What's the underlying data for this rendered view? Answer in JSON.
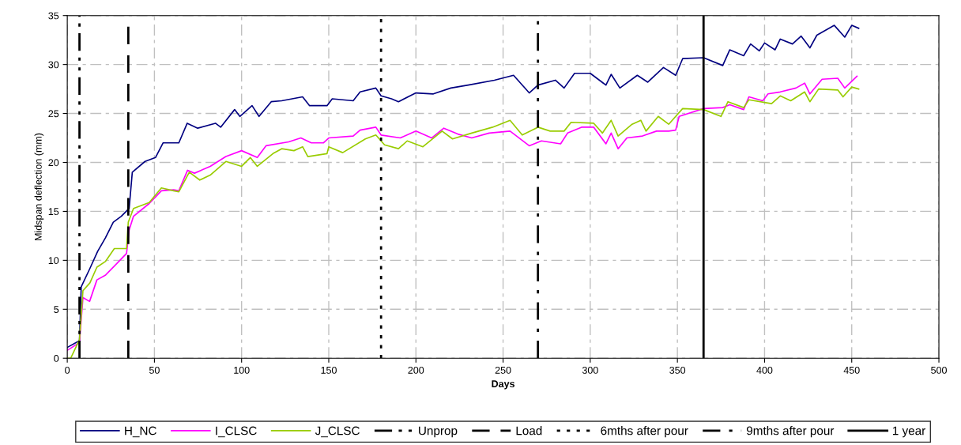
{
  "chart_data": {
    "type": "line",
    "xlabel": "Days",
    "ylabel": "Midspan deflection (mm)",
    "xlim": [
      0,
      500
    ],
    "xticks": [
      0,
      50,
      100,
      150,
      200,
      250,
      300,
      350,
      400,
      450,
      500
    ],
    "ylim": [
      0,
      35
    ],
    "yticks": [
      0,
      5,
      10,
      15,
      20,
      25,
      30,
      35
    ],
    "grid": true,
    "legend": "bottom",
    "line_style": "solid",
    "marker": "none",
    "series": [
      {
        "name": "H_NC",
        "color": "#000080",
        "x": [
          0,
          7,
          8,
          12.8,
          17.4,
          21.9,
          26.4,
          31,
          35.5,
          37.3,
          44.6,
          50.6,
          55,
          64,
          68.8,
          74.8,
          85,
          88,
          96,
          99,
          106,
          110,
          117,
          123,
          135,
          139,
          149,
          152,
          164,
          168,
          177,
          180,
          186,
          190,
          200,
          210,
          220,
          230,
          245,
          256,
          265,
          270,
          280,
          285,
          291,
          300,
          309,
          312,
          317,
          327,
          333,
          342,
          349,
          353,
          365,
          376,
          380,
          388,
          392,
          397,
          400,
          406,
          409,
          416,
          421,
          426,
          430,
          440,
          446,
          450,
          454
        ],
        "values": [
          1.1,
          1.8,
          7.3,
          9.1,
          10.9,
          12.3,
          13.9,
          14.5,
          15.3,
          19.0,
          20.1,
          20.5,
          22.0,
          22.0,
          24.0,
          23.5,
          24.0,
          23.6,
          25.4,
          24.7,
          25.8,
          24.7,
          26.2,
          26.3,
          26.7,
          25.8,
          25.8,
          26.5,
          26.3,
          27.2,
          27.6,
          26.8,
          26.5,
          26.2,
          27.1,
          27.0,
          27.6,
          27.9,
          28.4,
          28.9,
          27.1,
          27.9,
          28.4,
          27.6,
          29.1,
          29.1,
          27.9,
          29.0,
          27.6,
          28.9,
          28.2,
          29.7,
          28.9,
          30.6,
          30.7,
          29.9,
          31.5,
          30.9,
          32.1,
          31.4,
          32.2,
          31.5,
          32.6,
          32.1,
          32.9,
          31.7,
          33.0,
          34.0,
          32.8,
          34.0,
          33.7
        ]
      },
      {
        "name": "I_CLSC",
        "color": "#ff00ff",
        "x": [
          0,
          7,
          9,
          12.8,
          17,
          22,
          28,
          34,
          35.5,
          38,
          47,
          54,
          61,
          64,
          69,
          73,
          82,
          91,
          100,
          109,
          114,
          127,
          134,
          140,
          147,
          150,
          164,
          168,
          177,
          180,
          191,
          200,
          209,
          216,
          224,
          232,
          242,
          254,
          265,
          272,
          283,
          287,
          295,
          302,
          309,
          312,
          316,
          321,
          330,
          338,
          345,
          349,
          351,
          365,
          376,
          380,
          388,
          391,
          399,
          402,
          409,
          418,
          423,
          426,
          433,
          442,
          446,
          453
        ],
        "values": [
          0.8,
          1.6,
          6.2,
          5.8,
          8.0,
          8.5,
          9.6,
          10.7,
          13.1,
          14.5,
          15.8,
          17.1,
          17.2,
          17.1,
          19.2,
          18.9,
          19.6,
          20.6,
          21.2,
          20.5,
          21.7,
          22.1,
          22.5,
          22.0,
          22.0,
          22.5,
          22.7,
          23.3,
          23.6,
          22.8,
          22.5,
          23.2,
          22.5,
          23.5,
          22.9,
          22.5,
          23.0,
          23.2,
          21.7,
          22.2,
          21.9,
          23.0,
          23.6,
          23.6,
          21.9,
          23.0,
          21.4,
          22.5,
          22.7,
          23.2,
          23.2,
          23.3,
          24.7,
          25.5,
          25.6,
          25.9,
          25.4,
          26.7,
          26.3,
          27.0,
          27.2,
          27.6,
          28.1,
          27.0,
          28.5,
          28.6,
          27.6,
          28.8
        ]
      },
      {
        "name": "J_CLSC",
        "color": "#99cc00",
        "x": [
          0,
          2,
          7,
          9,
          13,
          17,
          22,
          27,
          34,
          35,
          38,
          47,
          54,
          61,
          64,
          70,
          76,
          82,
          91,
          100,
          105,
          109,
          118,
          123,
          130,
          135,
          138,
          149,
          150,
          158,
          171,
          177,
          182,
          190,
          195,
          204,
          215,
          221,
          232,
          244,
          254,
          261,
          270,
          277,
          285,
          289,
          302,
          307,
          312,
          316,
          324,
          329,
          332,
          339,
          345,
          353,
          365,
          375,
          379,
          388,
          391,
          404,
          409,
          415,
          423,
          426,
          431,
          442,
          445,
          450,
          454
        ],
        "values": [
          0,
          0,
          1.9,
          6.9,
          7.7,
          9.3,
          9.9,
          11.2,
          11.2,
          13.9,
          15.3,
          15.9,
          17.4,
          17.1,
          17.0,
          19.0,
          18.2,
          18.7,
          20.1,
          19.6,
          20.5,
          19.6,
          20.9,
          21.4,
          21.2,
          21.6,
          20.6,
          20.9,
          21.6,
          21.0,
          22.4,
          22.8,
          21.8,
          21.4,
          22.2,
          21.6,
          23.2,
          22.4,
          23.0,
          23.6,
          24.3,
          22.8,
          23.6,
          23.2,
          23.2,
          24.1,
          24.0,
          23.0,
          24.3,
          22.7,
          23.9,
          24.3,
          23.2,
          24.7,
          23.9,
          25.5,
          25.4,
          24.7,
          26.2,
          25.6,
          26.4,
          26.0,
          26.8,
          26.3,
          27.2,
          26.2,
          27.5,
          27.4,
          26.7,
          27.7,
          27.5
        ]
      }
    ],
    "ref_lines": [
      {
        "axis": "x",
        "value": 7,
        "label": "Unprop",
        "color": "#000000",
        "line_style": "dashdotdot"
      },
      {
        "axis": "x",
        "value": 35,
        "label": "Load",
        "color": "#000000",
        "line_style": "dashed"
      },
      {
        "axis": "x",
        "value": 180,
        "label": "6mths after pour",
        "color": "#000000",
        "line_style": "dotted"
      },
      {
        "axis": "x",
        "value": 270,
        "label": "9mths after pour",
        "color": "#000000",
        "line_style": "dashdot"
      },
      {
        "axis": "x",
        "value": 365,
        "label": "1 year",
        "color": "#000000",
        "line_style": "solid"
      }
    ]
  }
}
